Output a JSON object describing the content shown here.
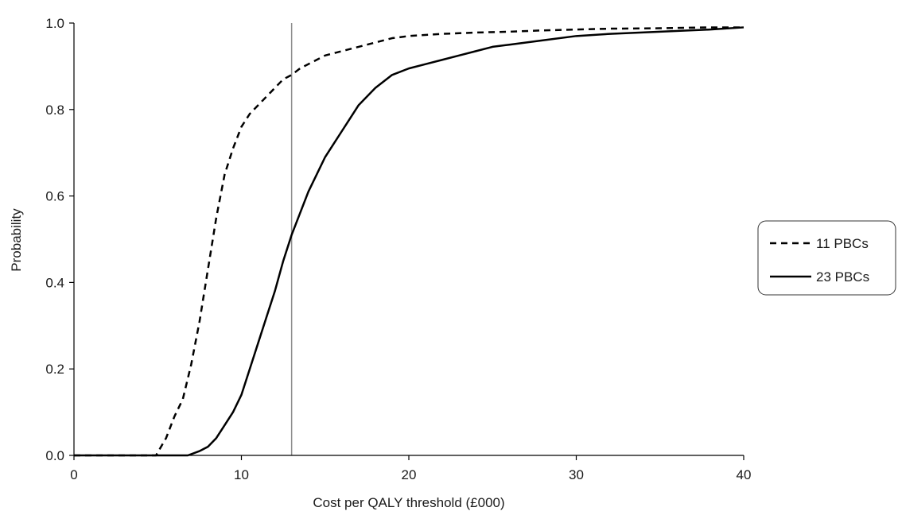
{
  "chart_data": {
    "type": "line",
    "xlabel": "Cost per QALY threshold (£000)",
    "ylabel": "Probability",
    "xlim": [
      0,
      40
    ],
    "ylim": [
      0,
      1
    ],
    "x_ticks": [
      0,
      10,
      20,
      30,
      40
    ],
    "x_tick_labels": [
      "0",
      "10",
      "20",
      "30",
      "40"
    ],
    "y_ticks": [
      0,
      0.2,
      0.4,
      0.6,
      0.8,
      1.0
    ],
    "y_tick_labels": [
      "0.0",
      "0.2",
      "0.4",
      "0.6",
      "0.8",
      "1.0"
    ],
    "grid": false,
    "legend_position": "right",
    "reference_line_x": 13,
    "series": [
      {
        "name": "11 PBCs",
        "style": "dashed",
        "color": "#000000",
        "x": [
          0,
          4.9,
          5.5,
          6.0,
          6.5,
          7.0,
          7.5,
          8.0,
          8.5,
          9.0,
          9.5,
          10.0,
          10.5,
          11.0,
          11.5,
          12.0,
          12.5,
          13.0,
          13.5,
          14.0,
          14.5,
          15.0,
          16.0,
          17.0,
          18.0,
          19.0,
          20.0,
          22.0,
          24.0,
          26.0,
          28.0,
          30.0,
          32.0,
          35.0,
          38.0,
          40.0
        ],
        "y": [
          0.0,
          0.0,
          0.04,
          0.09,
          0.13,
          0.21,
          0.31,
          0.43,
          0.55,
          0.65,
          0.71,
          0.76,
          0.79,
          0.81,
          0.83,
          0.85,
          0.87,
          0.88,
          0.895,
          0.905,
          0.915,
          0.925,
          0.935,
          0.945,
          0.955,
          0.965,
          0.97,
          0.975,
          0.978,
          0.98,
          0.983,
          0.985,
          0.987,
          0.988,
          0.99,
          0.99
        ]
      },
      {
        "name": "23 PBCs",
        "style": "solid",
        "color": "#000000",
        "x": [
          0,
          6.8,
          7.5,
          8.0,
          8.5,
          9.0,
          9.5,
          10.0,
          10.5,
          11.0,
          11.5,
          12.0,
          12.5,
          13.0,
          13.5,
          14.0,
          14.5,
          15.0,
          15.5,
          16.0,
          16.5,
          17.0,
          18.0,
          19.0,
          20.0,
          21.0,
          22.0,
          23.0,
          24.0,
          25.0,
          26.0,
          28.0,
          30.0,
          32.0,
          35.0,
          38.0,
          40.0
        ],
        "y": [
          0.0,
          0.0,
          0.01,
          0.02,
          0.04,
          0.07,
          0.1,
          0.14,
          0.2,
          0.26,
          0.32,
          0.38,
          0.45,
          0.51,
          0.56,
          0.61,
          0.65,
          0.69,
          0.72,
          0.75,
          0.78,
          0.81,
          0.85,
          0.88,
          0.895,
          0.905,
          0.915,
          0.925,
          0.935,
          0.945,
          0.95,
          0.96,
          0.97,
          0.975,
          0.98,
          0.985,
          0.99
        ]
      }
    ]
  }
}
